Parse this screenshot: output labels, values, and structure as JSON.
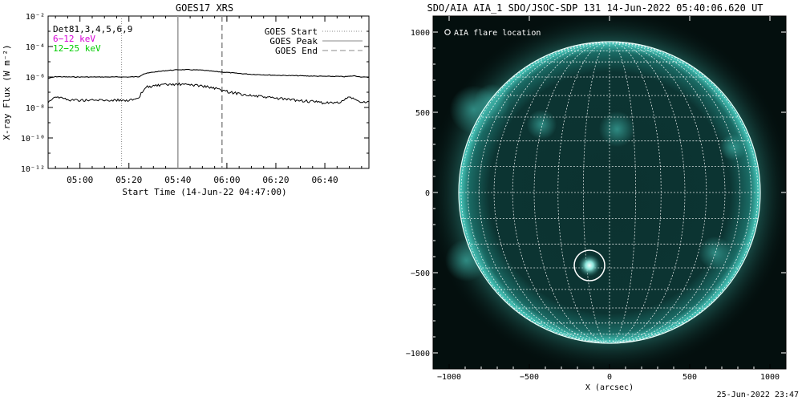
{
  "stamp": "25-Jun-2022 23:47",
  "chart_data": [
    {
      "type": "line",
      "title": "GOES17 XRS",
      "xlabel": "Start Time (14-Jun-22 04:47:00)",
      "ylabel": "X-ray Flux (W m⁻²)",
      "x_ticks": [
        "05:00",
        "05:20",
        "05:40",
        "06:00",
        "06:20",
        "06:40"
      ],
      "y_ticks": [
        "10⁻²",
        "10⁻⁴",
        "10⁻⁶",
        "10⁻⁸",
        "10⁻¹⁰",
        "10⁻¹²"
      ],
      "y_scale": "log",
      "ylim": [
        1e-12,
        0.01
      ],
      "xlim": [
        "04:47",
        "06:58"
      ],
      "legend_left": [
        "Det81,3,4,5,6,9",
        "6−12 keV",
        "12−25 keV"
      ],
      "legend_left_colors": [
        "#000000",
        "#d800d8",
        "#00cc00"
      ],
      "legend_right": [
        "GOES Start",
        "GOES Peak",
        "GOES End"
      ],
      "markers": {
        "start": "05:17",
        "peak": "05:40",
        "end": "05:58"
      },
      "series": [
        {
          "x": [
            "04:47",
            "04:50",
            "04:55",
            "05:00",
            "05:05",
            "05:10",
            "05:15",
            "05:20",
            "05:24",
            "05:26",
            "05:30",
            "05:35",
            "05:40",
            "05:45",
            "05:50",
            "05:55",
            "06:00",
            "06:05",
            "06:10",
            "06:20",
            "06:30",
            "06:40",
            "06:45",
            "06:48",
            "06:50",
            "06:52",
            "06:55",
            "06:58"
          ],
          "values": [
            8e-07,
            1.05e-06,
            1e-06,
            1e-06,
            1e-06,
            1e-06,
            1e-06,
            1e-06,
            1.05e-06,
            1.6e-06,
            2.1e-06,
            2.6e-06,
            3e-06,
            3e-06,
            2.8e-06,
            2.3e-06,
            2e-06,
            1.7e-06,
            1.5e-06,
            1.3e-06,
            1.2e-06,
            1.1e-06,
            1.1e-06,
            1.05e-06,
            1.1e-06,
            1.2e-06,
            1e-06,
            9.5e-07
          ]
        },
        {
          "x": [
            "04:47",
            "04:49",
            "04:51",
            "04:55",
            "05:00",
            "05:05",
            "05:10",
            "05:15",
            "05:20",
            "05:24",
            "05:25",
            "05:27",
            "05:30",
            "05:35",
            "05:40",
            "05:45",
            "05:50",
            "05:55",
            "06:00",
            "06:05",
            "06:10",
            "06:20",
            "06:30",
            "06:40",
            "06:45",
            "06:48",
            "06:50",
            "06:52",
            "06:55",
            "06:58"
          ],
          "values": [
            2.2e-08,
            4.5e-08,
            5e-08,
            3.2e-08,
            3e-08,
            3e-08,
            3e-08,
            3e-08,
            3e-08,
            3.5e-08,
            8e-08,
            2.2e-07,
            2.6e-07,
            3e-07,
            3.3e-07,
            3.1e-07,
            2.6e-07,
            1.8e-07,
            1.1e-07,
            8e-08,
            6e-08,
            4e-08,
            2.8e-08,
            2e-08,
            2e-08,
            3e-08,
            5e-08,
            3.5e-08,
            2e-08,
            2.5e-08
          ]
        }
      ]
    },
    {
      "type": "image",
      "title": "SDO/AIA AIA_1 SDO/JSOC-SDP 131 14-Jun-2022 05:40:06.620 UT",
      "xlabel": "X (arcsec)",
      "ylabel": "",
      "x_ticks": [
        "−1000",
        "−500",
        "0",
        "500",
        "1000"
      ],
      "y_ticks": [
        "1000",
        "500",
        "0",
        "−500",
        "−1000"
      ],
      "xlim": [
        -1100,
        1100
      ],
      "ylim": [
        -1100,
        1100
      ],
      "legend": [
        "AIA flare location"
      ],
      "solar_radius_arcsec": 940,
      "flare_location": {
        "x": -125,
        "y": -455
      },
      "colors": {
        "background": "#040f0e",
        "disk": "#0a2c2a",
        "limb": "#46c6ba",
        "grid": "#ffffff"
      }
    }
  ]
}
